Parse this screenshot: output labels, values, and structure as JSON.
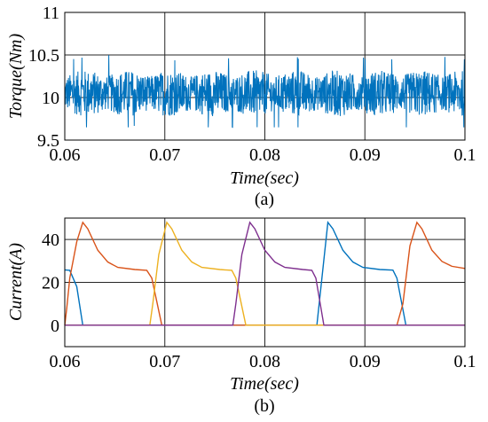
{
  "chart_data": [
    {
      "type": "line",
      "panel_caption": "(a)",
      "xlabel": "Time(sec)",
      "ylabel": "Torque(Nm)",
      "xlim": [
        0.06,
        0.1
      ],
      "ylim": [
        9.5,
        11
      ],
      "x_ticks": [
        "0.06",
        "0.07",
        "0.08",
        "0.09",
        "0.1"
      ],
      "y_ticks": [
        "9.5",
        "10",
        "10.5",
        "11"
      ],
      "grid": true,
      "series": [
        {
          "color": "#0072BD",
          "mean": 10.05,
          "ripple_band": [
            9.75,
            10.35
          ],
          "peak_max": 10.5,
          "peak_min": 9.65
        }
      ]
    },
    {
      "type": "line",
      "panel_caption": "(b)",
      "xlabel": "Time(sec)",
      "ylabel": "Current(A)",
      "xlim": [
        0.06,
        0.1
      ],
      "ylim": [
        -10,
        50
      ],
      "x_ticks": [
        "0.06",
        "0.07",
        "0.08",
        "0.09",
        "0.1"
      ],
      "y_ticks": [
        "0",
        "20",
        "40"
      ],
      "grid": true,
      "series": [
        {
          "color": "#0072BD",
          "points": [
            [
              0.06,
              25.8
            ],
            [
              0.0605,
              25.6
            ],
            [
              0.0612,
              18
            ],
            [
              0.0618,
              0
            ],
            [
              0.0842,
              0
            ],
            [
              0.0852,
              0
            ],
            [
              0.0863,
              48
            ],
            [
              0.0868,
              45
            ],
            [
              0.0878,
              35
            ],
            [
              0.0888,
              29.5
            ],
            [
              0.0898,
              27
            ],
            [
              0.0915,
              26
            ],
            [
              0.0928,
              25.7
            ],
            [
              0.0932,
              22
            ],
            [
              0.0941,
              0
            ],
            [
              0.1,
              0
            ]
          ]
        },
        {
          "color": "#D95319",
          "points": [
            [
              0.06,
              0
            ],
            [
              0.0602,
              8
            ],
            [
              0.0605,
              22
            ],
            [
              0.0612,
              39
            ],
            [
              0.0618,
              48
            ],
            [
              0.0623,
              45
            ],
            [
              0.0633,
              35
            ],
            [
              0.0643,
              29.5
            ],
            [
              0.0653,
              27
            ],
            [
              0.067,
              26
            ],
            [
              0.0682,
              25.6
            ],
            [
              0.0687,
              22
            ],
            [
              0.0697,
              0
            ],
            [
              0.0932,
              0
            ],
            [
              0.0938,
              10
            ],
            [
              0.0945,
              37
            ],
            [
              0.0952,
              48
            ],
            [
              0.0957,
              45
            ],
            [
              0.0967,
              35
            ],
            [
              0.0977,
              29.8
            ],
            [
              0.0987,
              27.5
            ],
            [
              0.1,
              26.5
            ]
          ]
        },
        {
          "color": "#EDB120",
          "points": [
            [
              0.06,
              0
            ],
            [
              0.0685,
              0
            ],
            [
              0.0688,
              10
            ],
            [
              0.0694,
              33
            ],
            [
              0.0702,
              48
            ],
            [
              0.0707,
              45
            ],
            [
              0.0717,
              35
            ],
            [
              0.0727,
              29.5
            ],
            [
              0.0737,
              27
            ],
            [
              0.0755,
              26
            ],
            [
              0.0767,
              25.6
            ],
            [
              0.0771,
              22
            ],
            [
              0.0781,
              0
            ],
            [
              0.1,
              0
            ]
          ]
        },
        {
          "color": "#7E2F8E",
          "points": [
            [
              0.06,
              0
            ],
            [
              0.0768,
              0
            ],
            [
              0.0771,
              10
            ],
            [
              0.0777,
              33
            ],
            [
              0.0785,
              48
            ],
            [
              0.079,
              45
            ],
            [
              0.08,
              35
            ],
            [
              0.081,
              29.5
            ],
            [
              0.082,
              27
            ],
            [
              0.0838,
              26
            ],
            [
              0.0847,
              25.6
            ],
            [
              0.0851,
              22
            ],
            [
              0.0859,
              0
            ],
            [
              0.1,
              0
            ]
          ]
        }
      ]
    }
  ]
}
